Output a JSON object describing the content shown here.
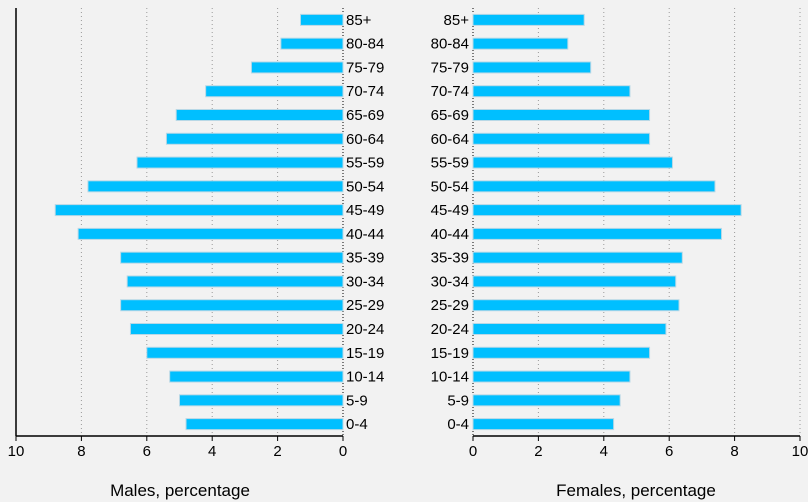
{
  "chart_data": {
    "type": "bar",
    "orientation": "horizontal",
    "layout": "population-pyramid",
    "categories": [
      "0-4",
      "5-9",
      "10-14",
      "15-19",
      "20-24",
      "25-29",
      "30-34",
      "35-39",
      "40-44",
      "45-49",
      "50-54",
      "55-59",
      "60-64",
      "65-69",
      "70-74",
      "75-79",
      "80-84",
      "85+"
    ],
    "series": [
      {
        "name": "Males",
        "values": [
          4.8,
          5.0,
          5.3,
          6.0,
          6.5,
          6.8,
          6.6,
          6.8,
          8.1,
          8.8,
          7.8,
          6.3,
          5.4,
          5.1,
          4.2,
          2.8,
          1.9,
          1.3
        ]
      },
      {
        "name": "Females",
        "values": [
          4.3,
          4.5,
          4.8,
          5.4,
          5.9,
          6.3,
          6.2,
          6.4,
          7.6,
          8.2,
          7.4,
          6.1,
          5.4,
          5.4,
          4.8,
          3.6,
          2.9,
          3.4
        ]
      }
    ],
    "xlim": [
      0,
      10
    ],
    "male_ticks": [
      "10",
      "8",
      "6",
      "4",
      "2",
      "0"
    ],
    "female_ticks": [
      "0",
      "2",
      "4",
      "6",
      "8",
      "10"
    ],
    "male_xlabel": "Males, percentage",
    "female_xlabel": "Females, percentage",
    "grid": "vertical dotted",
    "bar_color": "#00bfff"
  }
}
